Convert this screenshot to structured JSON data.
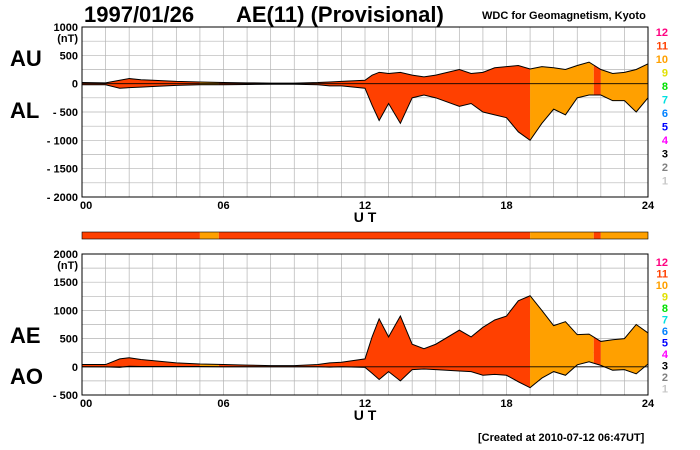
{
  "header": {
    "date": "1997/01/26",
    "title": "AE(11) (Provisional)",
    "credit": "WDC for Geomagnetism, Kyoto",
    "created": "[Created at 2010-07-12 06:47UT]"
  },
  "colors": {
    "kp_scale": [
      "#c8c8c8",
      "#808080",
      "#000000",
      "#ff00ff",
      "#0000ff",
      "#0080ff",
      "#00e0e0",
      "#00e000",
      "#e0e000",
      "#ffa000",
      "#ff4000",
      "#ff0080"
    ],
    "outline": "#000000"
  },
  "kp_labels": [
    "12",
    "11",
    "10",
    "9",
    "8",
    "7",
    "6",
    "5",
    "4",
    "3",
    "2",
    "1"
  ],
  "chart_data": [
    {
      "name": "AU/AL",
      "type": "area",
      "left_labels": [
        "AU",
        "AL"
      ],
      "ylabel": "(nT)",
      "ylim": [
        -2000,
        1000
      ],
      "yticks": [
        1000,
        500,
        0,
        -500,
        -1000,
        -1500,
        -2000
      ],
      "ytick_labels": [
        "1000",
        "500",
        "0",
        "- 500",
        "- 1000",
        "- 1500",
        "- 2000"
      ],
      "xlabel": "U T",
      "xlim": [
        0,
        24
      ],
      "xticks": [
        0,
        6,
        12,
        18,
        24
      ],
      "xtick_labels": [
        "00",
        "06",
        "12",
        "18",
        "24"
      ],
      "grid": true,
      "series": [
        {
          "name": "AU",
          "x": [
            0,
            1,
            1.6,
            2,
            2.5,
            3,
            4,
            5,
            6,
            7,
            8,
            9,
            10,
            10.5,
            11,
            12,
            12.3,
            12.6,
            13,
            13.5,
            14,
            14.5,
            15,
            16,
            16.5,
            17,
            17.5,
            18,
            18.5,
            19,
            19.5,
            20,
            20.5,
            21,
            21.5,
            22,
            22.5,
            23,
            23.5,
            24
          ],
          "values": [
            20,
            15,
            60,
            90,
            70,
            60,
            40,
            30,
            20,
            15,
            10,
            10,
            20,
            30,
            40,
            60,
            150,
            200,
            180,
            200,
            150,
            120,
            150,
            250,
            180,
            200,
            280,
            300,
            320,
            260,
            300,
            280,
            250,
            320,
            380,
            250,
            180,
            200,
            250,
            350
          ]
        },
        {
          "name": "AL",
          "x": [
            0,
            1,
            1.6,
            2,
            2.5,
            3,
            4,
            5,
            6,
            7,
            8,
            9,
            10,
            10.5,
            11,
            12,
            12.3,
            12.6,
            13,
            13.5,
            14,
            14.5,
            15,
            16,
            16.5,
            17,
            17.5,
            18,
            18.5,
            19,
            19.5,
            20,
            20.5,
            21,
            21.5,
            22,
            22.5,
            23,
            23.5,
            24
          ],
          "values": [
            -20,
            -20,
            -80,
            -70,
            -60,
            -50,
            -30,
            -20,
            -20,
            -15,
            -10,
            -10,
            -20,
            -40,
            -40,
            -80,
            -380,
            -650,
            -350,
            -700,
            -250,
            -200,
            -250,
            -400,
            -350,
            -500,
            -550,
            -600,
            -850,
            -1000,
            -700,
            -450,
            -550,
            -250,
            -200,
            -200,
            -300,
            -300,
            -500,
            -250
          ]
        }
      ],
      "kp_segments": [
        {
          "from": 0,
          "to": 5,
          "level": 11
        },
        {
          "from": 5,
          "to": 5.8,
          "level": 10
        },
        {
          "from": 5.8,
          "to": 19,
          "level": 11
        },
        {
          "from": 19,
          "to": 21.7,
          "level": 10
        },
        {
          "from": 21.7,
          "to": 22,
          "level": 11
        },
        {
          "from": 22,
          "to": 24,
          "level": 10
        }
      ]
    },
    {
      "name": "AE/AO",
      "type": "area",
      "left_labels": [
        "AE",
        "AO"
      ],
      "ylabel": "(nT)",
      "ylim": [
        -500,
        2000
      ],
      "yticks": [
        2000,
        1500,
        1000,
        500,
        0,
        -500
      ],
      "ytick_labels": [
        "2000",
        "1500",
        "1000",
        "500",
        "0",
        "- 500"
      ],
      "xlabel": "U T",
      "xlim": [
        0,
        24
      ],
      "xticks": [
        0,
        6,
        12,
        18,
        24
      ],
      "xtick_labels": [
        "00",
        "06",
        "12",
        "18",
        "24"
      ],
      "grid": true,
      "series": [
        {
          "name": "AE",
          "x": [
            0,
            1,
            1.6,
            2,
            2.5,
            3,
            4,
            5,
            6,
            7,
            8,
            9,
            10,
            10.5,
            11,
            12,
            12.3,
            12.6,
            13,
            13.5,
            14,
            14.5,
            15,
            16,
            16.5,
            17,
            17.5,
            18,
            18.5,
            19,
            19.5,
            20,
            20.5,
            21,
            21.5,
            22,
            22.5,
            23,
            23.5,
            24
          ],
          "values": [
            40,
            40,
            140,
            160,
            130,
            110,
            70,
            50,
            40,
            30,
            20,
            20,
            40,
            70,
            80,
            140,
            530,
            850,
            530,
            900,
            400,
            320,
            400,
            650,
            530,
            700,
            830,
            900,
            1170,
            1260,
            1000,
            730,
            800,
            570,
            580,
            450,
            480,
            500,
            750,
            600
          ]
        },
        {
          "name": "AO",
          "x": [
            0,
            1,
            1.6,
            2,
            2.5,
            3,
            4,
            5,
            6,
            7,
            8,
            9,
            10,
            10.5,
            11,
            12,
            12.3,
            12.6,
            13,
            13.5,
            14,
            14.5,
            15,
            16,
            16.5,
            17,
            17.5,
            18,
            18.5,
            19,
            19.5,
            20,
            20.5,
            21,
            21.5,
            22,
            22.5,
            23,
            23.5,
            24
          ],
          "values": [
            0,
            -2,
            -10,
            10,
            5,
            5,
            5,
            5,
            0,
            0,
            0,
            0,
            0,
            -5,
            0,
            -10,
            -115,
            -225,
            -85,
            -250,
            -50,
            -40,
            -50,
            -75,
            -85,
            -150,
            -135,
            -150,
            -265,
            -370,
            -200,
            -85,
            -150,
            35,
            90,
            25,
            -60,
            -50,
            -125,
            50
          ]
        }
      ],
      "kp_segments": [
        {
          "from": 0,
          "to": 5,
          "level": 11
        },
        {
          "from": 5,
          "to": 5.8,
          "level": 10
        },
        {
          "from": 5.8,
          "to": 19,
          "level": 11
        },
        {
          "from": 19,
          "to": 21.7,
          "level": 10
        },
        {
          "from": 21.7,
          "to": 22,
          "level": 11
        },
        {
          "from": 22,
          "to": 24,
          "level": 10
        }
      ]
    }
  ]
}
